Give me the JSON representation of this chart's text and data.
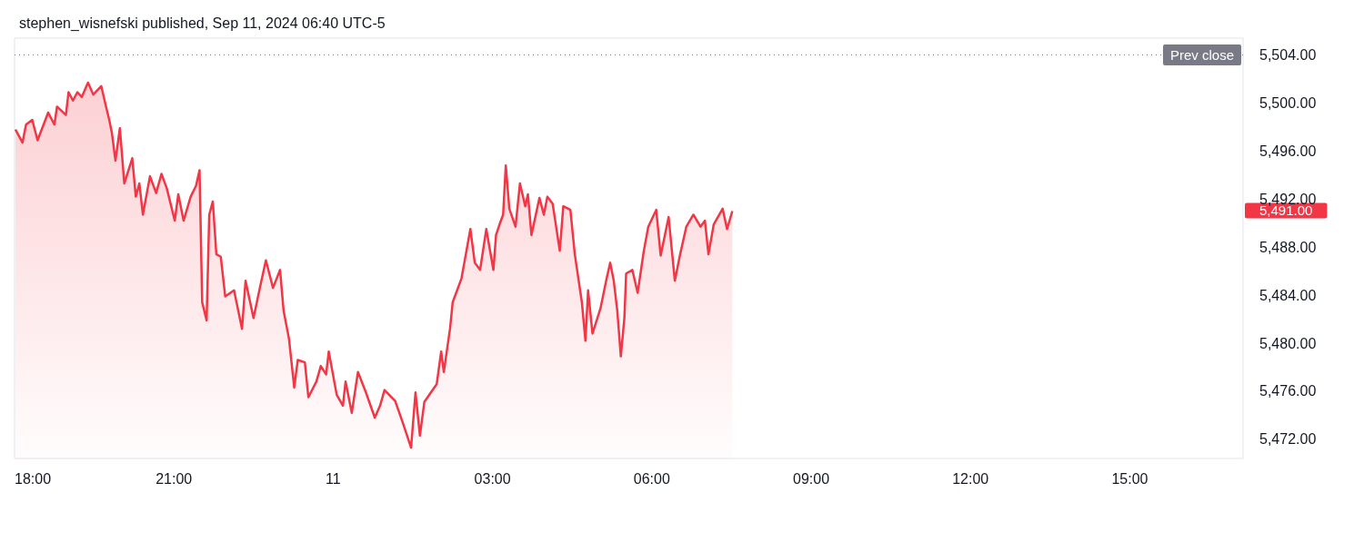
{
  "chart_data": {
    "type": "area",
    "title": "stephen_wisnefski published, Sep 11, 2024 06:40 UTC-5",
    "x": [
      "2024-09-10T18:01",
      "2024-09-10T18:09",
      "2024-09-10T18:13",
      "2024-09-10T18:20",
      "2024-09-10T18:26",
      "2024-09-10T18:38",
      "2024-09-10T18:45",
      "2024-09-10T18:48",
      "2024-09-10T18:58",
      "2024-09-10T19:01",
      "2024-09-10T19:06",
      "2024-09-10T19:11",
      "2024-09-10T19:16",
      "2024-09-10T19:23",
      "2024-09-10T19:29",
      "2024-09-10T19:38",
      "2024-09-10T19:44",
      "2024-09-10T19:47",
      "2024-09-10T19:50",
      "2024-09-10T19:54",
      "2024-09-10T19:59",
      "2024-09-10T20:04",
      "2024-09-10T20:13",
      "2024-09-10T20:17",
      "2024-09-10T20:21",
      "2024-09-10T20:25",
      "2024-09-10T20:33",
      "2024-09-10T20:40",
      "2024-09-10T20:46",
      "2024-09-10T20:52",
      "2024-09-10T21:01",
      "2024-09-10T21:05",
      "2024-09-10T21:11",
      "2024-09-10T21:19",
      "2024-09-10T21:25",
      "2024-09-10T21:29",
      "2024-09-10T21:32",
      "2024-09-10T21:37",
      "2024-09-10T21:40",
      "2024-09-10T21:44",
      "2024-09-10T21:48",
      "2024-09-10T21:53",
      "2024-09-10T21:58",
      "2024-09-10T22:08",
      "2024-09-10T22:17",
      "2024-09-10T22:21",
      "2024-09-10T22:30",
      "2024-09-10T22:38",
      "2024-09-10T22:44",
      "2024-09-10T22:52",
      "2024-09-10T23:00",
      "2024-09-10T23:04",
      "2024-09-10T23:10",
      "2024-09-10T23:16",
      "2024-09-10T23:20",
      "2024-09-10T23:28",
      "2024-09-10T23:32",
      "2024-09-10T23:41",
      "2024-09-10T23:46",
      "2024-09-10T23:52",
      "2024-09-10T23:55",
      "2024-09-11T00:04",
      "2024-09-11T00:11",
      "2024-09-11T00:14",
      "2024-09-11T00:21",
      "2024-09-11T00:28",
      "2024-09-11T00:37",
      "2024-09-11T00:47",
      "2024-09-11T00:53",
      "2024-09-11T00:58",
      "2024-09-11T01:10",
      "2024-09-11T01:19",
      "2024-09-11T01:28",
      "2024-09-11T01:33",
      "2024-09-11T01:38",
      "2024-09-11T01:43",
      "2024-09-11T01:57",
      "2024-09-11T02:02",
      "2024-09-11T02:05",
      "2024-09-11T02:12",
      "2024-09-11T02:15",
      "2024-09-11T02:25",
      "2024-09-11T02:35",
      "2024-09-11T02:40",
      "2024-09-11T02:46",
      "2024-09-11T02:53",
      "2024-09-11T03:01",
      "2024-09-11T03:04",
      "2024-09-11T03:08",
      "2024-09-11T03:12",
      "2024-09-11T03:15",
      "2024-09-11T03:19",
      "2024-09-11T03:26",
      "2024-09-11T03:31",
      "2024-09-11T03:37",
      "2024-09-11T03:40",
      "2024-09-11T03:44",
      "2024-09-11T03:53",
      "2024-09-11T03:58",
      "2024-09-11T04:02",
      "2024-09-11T04:08",
      "2024-09-11T04:16",
      "2024-09-11T04:20",
      "2024-09-11T04:28",
      "2024-09-11T04:33",
      "2024-09-11T04:41",
      "2024-09-11T04:45",
      "2024-09-11T04:48",
      "2024-09-11T04:53",
      "2024-09-11T05:02",
      "2024-09-11T05:09",
      "2024-09-11T05:13",
      "2024-09-11T05:17",
      "2024-09-11T05:21",
      "2024-09-11T05:25",
      "2024-09-11T05:29",
      "2024-09-11T05:31",
      "2024-09-11T05:38",
      "2024-09-11T05:44",
      "2024-09-11T05:51",
      "2024-09-11T05:56",
      "2024-09-11T06:05",
      "2024-09-11T06:10",
      "2024-09-11T06:19",
      "2024-09-11T06:26",
      "2024-09-11T06:32",
      "2024-09-11T06:39",
      "2024-09-11T06:47",
      "2024-09-11T06:55",
      "2024-09-11T07:00",
      "2024-09-11T07:04",
      "2024-09-11T07:10",
      "2024-09-11T07:20",
      "2024-09-11T07:25",
      "2024-09-11T07:31"
    ],
    "values": [
      5497.8,
      5496.7,
      5498.2,
      5498.6,
      5496.9,
      5499.2,
      5498.2,
      5499.7,
      5499.0,
      5500.9,
      5500.2,
      5500.9,
      5500.5,
      5501.7,
      5500.7,
      5501.4,
      5499.5,
      5498.6,
      5497.5,
      5495.2,
      5497.9,
      5493.3,
      5495.4,
      5492.2,
      5493.3,
      5490.7,
      5493.9,
      5492.5,
      5494.1,
      5492.9,
      5490.2,
      5492.4,
      5490.2,
      5492.2,
      5493.1,
      5494.4,
      5483.4,
      5481.9,
      5490.7,
      5491.8,
      5487.4,
      5487.2,
      5483.9,
      5484.4,
      5481.2,
      5485.2,
      5482.1,
      5484.9,
      5486.9,
      5484.6,
      5486.1,
      5482.7,
      5480.4,
      5476.3,
      5478.6,
      5478.4,
      5475.5,
      5476.8,
      5478.1,
      5477.4,
      5479.3,
      5475.7,
      5474.8,
      5476.8,
      5474.2,
      5477.6,
      5475.9,
      5473.8,
      5474.8,
      5476.1,
      5475.2,
      5473.3,
      5471.3,
      5475.9,
      5472.3,
      5475.1,
      5476.6,
      5479.3,
      5477.6,
      5481.2,
      5483.4,
      5485.4,
      5489.5,
      5486.7,
      5486.1,
      5489.5,
      5486.1,
      5489.0,
      5489.9,
      5490.7,
      5494.8,
      5491.2,
      5489.7,
      5493.3,
      5491.4,
      5492.4,
      5489.0,
      5492.1,
      5490.7,
      5492.2,
      5491.6,
      5487.7,
      5491.4,
      5491.1,
      5487.4,
      5483.4,
      5480.2,
      5484.4,
      5480.8,
      5482.9,
      5485.4,
      5486.7,
      5485.2,
      5482.7,
      5478.9,
      5482.1,
      5485.8,
      5486.1,
      5484.2,
      5487.7,
      5489.7,
      5491.1,
      5487.3,
      5490.5,
      5485.2,
      5487.4,
      5489.7,
      5490.7,
      5489.7,
      5490.2,
      5487.4,
      5489.9,
      5491.2,
      5489.5,
      5491.0
    ],
    "color": "#f23645",
    "xlim": [
      "2024-09-10T18:00",
      "2024-09-11T17:08"
    ],
    "xticks": [
      {
        "value": "2024-09-10T18:00",
        "label": "18:00"
      },
      {
        "value": "2024-09-10T21:00",
        "label": "21:00"
      },
      {
        "value": "2024-09-11",
        "label": "11"
      },
      {
        "value": "2024-09-11T03:00",
        "label": "03:00"
      },
      {
        "value": "2024-09-11T06:00",
        "label": "06:00"
      },
      {
        "value": "2024-09-11T09:00",
        "label": "09:00"
      },
      {
        "value": "2024-09-11T12:00",
        "label": "12:00"
      },
      {
        "value": "2024-09-11T15:00",
        "label": "15:00"
      }
    ],
    "ylim": [
      5470.4,
      5505.4
    ],
    "yticks": [
      {
        "value": 5472,
        "label": "5,472.00"
      },
      {
        "value": 5476,
        "label": "5,476.00"
      },
      {
        "value": 5480,
        "label": "5,480.00"
      },
      {
        "value": 5484,
        "label": "5,484.00"
      },
      {
        "value": 5488,
        "label": "5,488.00"
      },
      {
        "value": 5492,
        "label": "5,492.00"
      },
      {
        "value": 5496,
        "label": "5,496.00"
      },
      {
        "value": 5500,
        "label": "5,500.00"
      },
      {
        "value": 5504,
        "label": "5,504.00"
      }
    ],
    "ref_lines": [
      {
        "axis": "y",
        "value": 5504,
        "label": "Prev close",
        "color": "#787b86",
        "line_style": "dotted"
      }
    ],
    "annotations": [
      "5,491.00"
    ]
  }
}
